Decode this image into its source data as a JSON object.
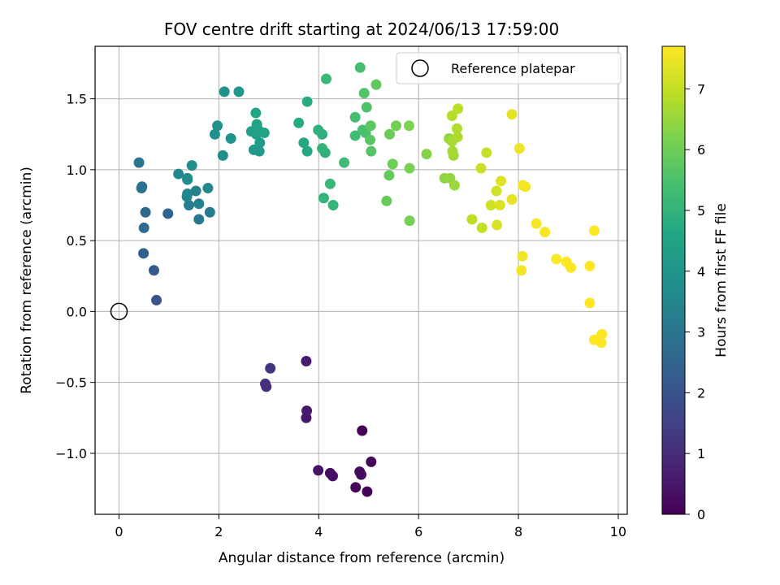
{
  "chart_data": {
    "type": "scatter",
    "title": "FOV centre drift starting at 2024/06/13 17:59:00",
    "xlabel": "Angular distance from reference (arcmin)",
    "ylabel": "Rotation from reference (arcmin)",
    "xlim": [
      -0.48,
      10.18
    ],
    "ylim": [
      -1.43,
      1.87
    ],
    "xticks": [
      0,
      2,
      4,
      6,
      8,
      10
    ],
    "xtick_labels": [
      "0",
      "2",
      "4",
      "6",
      "8",
      "10"
    ],
    "yticks": [
      -1.0,
      -0.5,
      0.0,
      0.5,
      1.0,
      1.5
    ],
    "ytick_labels": [
      "−1.0",
      "−0.5",
      "0.0",
      "0.5",
      "1.0",
      "1.5"
    ],
    "grid": true,
    "legend": {
      "placement": "top-right",
      "entries": [
        "Reference platepar"
      ]
    },
    "reference_point": {
      "label": "Reference platepar",
      "x": 0,
      "y": 0
    },
    "colorbar": {
      "label": "Hours from first FF file",
      "colormap": "viridis",
      "range": [
        0,
        7.7
      ],
      "ticks": [
        0,
        1,
        2,
        3,
        4,
        5,
        6,
        7
      ],
      "tick_labels": [
        "0",
        "1",
        "2",
        "3",
        "4",
        "5",
        "6",
        "7"
      ]
    },
    "series": [
      {
        "points": [
          [
            4.87,
            -0.84,
            0.0
          ],
          [
            4.97,
            -1.27,
            0.05
          ],
          [
            5.05,
            -1.06,
            0.1
          ],
          [
            4.74,
            -1.24,
            0.15
          ],
          [
            4.85,
            -1.15,
            0.2
          ],
          [
            4.82,
            -1.13,
            0.25
          ],
          [
            4.23,
            -1.14,
            0.3
          ],
          [
            4.28,
            -1.16,
            0.35
          ],
          [
            3.99,
            -1.12,
            0.4
          ],
          [
            3.75,
            -0.75,
            0.5
          ],
          [
            3.76,
            -0.7,
            0.55
          ],
          [
            3.75,
            -0.35,
            0.6
          ],
          [
            2.95,
            -0.53,
            1.0
          ],
          [
            2.93,
            -0.51,
            1.1
          ],
          [
            3.03,
            -0.4,
            1.2
          ],
          [
            0.75,
            0.08,
            2.0
          ],
          [
            0.7,
            0.29,
            2.2
          ],
          [
            0.49,
            0.41,
            2.4
          ],
          [
            0.98,
            0.69,
            2.5
          ],
          [
            0.53,
            0.7,
            2.6
          ],
          [
            0.5,
            0.59,
            2.7
          ],
          [
            0.46,
            0.88,
            2.8
          ],
          [
            0.45,
            0.87,
            2.9
          ],
          [
            0.4,
            1.05,
            3.0
          ],
          [
            1.6,
            0.65,
            3.1
          ],
          [
            1.82,
            0.7,
            3.2
          ],
          [
            1.4,
            0.75,
            3.3
          ],
          [
            1.6,
            0.76,
            3.35
          ],
          [
            1.54,
            0.85,
            3.4
          ],
          [
            1.37,
            0.83,
            3.45
          ],
          [
            1.36,
            0.81,
            3.5
          ],
          [
            1.78,
            0.87,
            3.55
          ],
          [
            1.19,
            0.97,
            3.6
          ],
          [
            1.37,
            0.93,
            3.65
          ],
          [
            1.37,
            0.94,
            3.7
          ],
          [
            1.46,
            1.03,
            3.75
          ],
          [
            2.08,
            1.1,
            3.8
          ],
          [
            1.92,
            1.25,
            3.85
          ],
          [
            1.97,
            1.31,
            3.9
          ],
          [
            2.24,
            1.22,
            3.95
          ],
          [
            2.11,
            1.55,
            4.0
          ],
          [
            2.4,
            1.55,
            4.05
          ],
          [
            2.7,
            1.14,
            4.1
          ],
          [
            2.81,
            1.13,
            4.15
          ],
          [
            2.78,
            1.14,
            4.2
          ],
          [
            2.82,
            1.19,
            4.25
          ],
          [
            2.75,
            1.25,
            4.3
          ],
          [
            2.65,
            1.27,
            4.35
          ],
          [
            2.79,
            1.28,
            4.4
          ],
          [
            2.76,
            1.32,
            4.45
          ],
          [
            2.91,
            1.26,
            4.5
          ],
          [
            2.74,
            1.4,
            4.55
          ],
          [
            3.77,
            1.13,
            4.65
          ],
          [
            3.7,
            1.19,
            4.7
          ],
          [
            3.6,
            1.33,
            4.75
          ],
          [
            3.77,
            1.48,
            4.8
          ],
          [
            4.13,
            1.12,
            4.85
          ],
          [
            4.07,
            1.25,
            4.9
          ],
          [
            3.99,
            1.28,
            4.95
          ],
          [
            4.07,
            1.15,
            5.0
          ],
          [
            4.1,
            0.8,
            5.05
          ],
          [
            4.29,
            0.75,
            5.1
          ],
          [
            4.23,
            0.9,
            5.15
          ],
          [
            4.15,
            1.64,
            5.2
          ],
          [
            4.51,
            1.05,
            5.25
          ],
          [
            4.73,
            1.24,
            5.3
          ],
          [
            4.73,
            1.37,
            5.35
          ],
          [
            4.83,
            1.72,
            5.4
          ],
          [
            4.88,
            1.28,
            5.45
          ],
          [
            4.94,
            1.26,
            5.5
          ],
          [
            4.96,
            1.44,
            5.55
          ],
          [
            4.91,
            1.54,
            5.6
          ],
          [
            5.05,
            1.13,
            5.65
          ],
          [
            5.03,
            1.21,
            5.7
          ],
          [
            5.04,
            1.31,
            5.75
          ],
          [
            5.15,
            1.6,
            5.8
          ],
          [
            5.41,
            0.96,
            5.85
          ],
          [
            5.36,
            0.78,
            5.9
          ],
          [
            5.42,
            1.25,
            5.95
          ],
          [
            5.48,
            1.04,
            6.0
          ],
          [
            5.55,
            1.31,
            6.05
          ],
          [
            5.82,
            0.64,
            6.1
          ],
          [
            5.82,
            1.01,
            6.15
          ],
          [
            5.81,
            1.31,
            6.2
          ],
          [
            6.16,
            1.11,
            6.3
          ],
          [
            6.52,
            0.94,
            6.4
          ],
          [
            6.63,
            0.94,
            6.45
          ],
          [
            6.61,
            1.22,
            6.5
          ],
          [
            6.72,
            0.89,
            6.55
          ],
          [
            6.7,
            1.1,
            6.6
          ],
          [
            6.68,
            1.13,
            6.65
          ],
          [
            6.67,
            1.2,
            6.7
          ],
          [
            6.78,
            1.23,
            6.75
          ],
          [
            6.77,
            1.29,
            6.8
          ],
          [
            6.67,
            1.38,
            6.85
          ],
          [
            6.79,
            1.43,
            6.9
          ],
          [
            7.07,
            0.65,
            6.95
          ],
          [
            7.27,
            0.59,
            7.0
          ],
          [
            7.36,
            1.12,
            7.05
          ],
          [
            7.25,
            1.01,
            7.1
          ],
          [
            7.45,
            0.75,
            7.15
          ],
          [
            7.56,
            0.85,
            7.2
          ],
          [
            7.57,
            0.61,
            7.25
          ],
          [
            7.63,
            0.75,
            7.3
          ],
          [
            7.65,
            0.92,
            7.35
          ],
          [
            7.87,
            1.39,
            7.4
          ],
          [
            7.87,
            0.79,
            7.45
          ],
          [
            8.02,
            1.15,
            7.5
          ],
          [
            8.06,
            0.29,
            7.55
          ],
          [
            8.08,
            0.39,
            7.55
          ],
          [
            8.09,
            0.89,
            7.6
          ],
          [
            8.14,
            0.88,
            7.6
          ],
          [
            8.36,
            0.62,
            7.62
          ],
          [
            8.53,
            0.56,
            7.64
          ],
          [
            8.76,
            0.37,
            7.66
          ],
          [
            8.96,
            0.35,
            7.68
          ],
          [
            9.05,
            0.31,
            7.7
          ],
          [
            9.43,
            0.06,
            7.7
          ],
          [
            9.43,
            0.32,
            7.7
          ],
          [
            9.52,
            -0.2,
            7.7
          ],
          [
            9.52,
            0.57,
            7.7
          ],
          [
            9.66,
            -0.22,
            7.7
          ],
          [
            9.67,
            -0.16,
            7.7
          ]
        ]
      }
    ]
  }
}
